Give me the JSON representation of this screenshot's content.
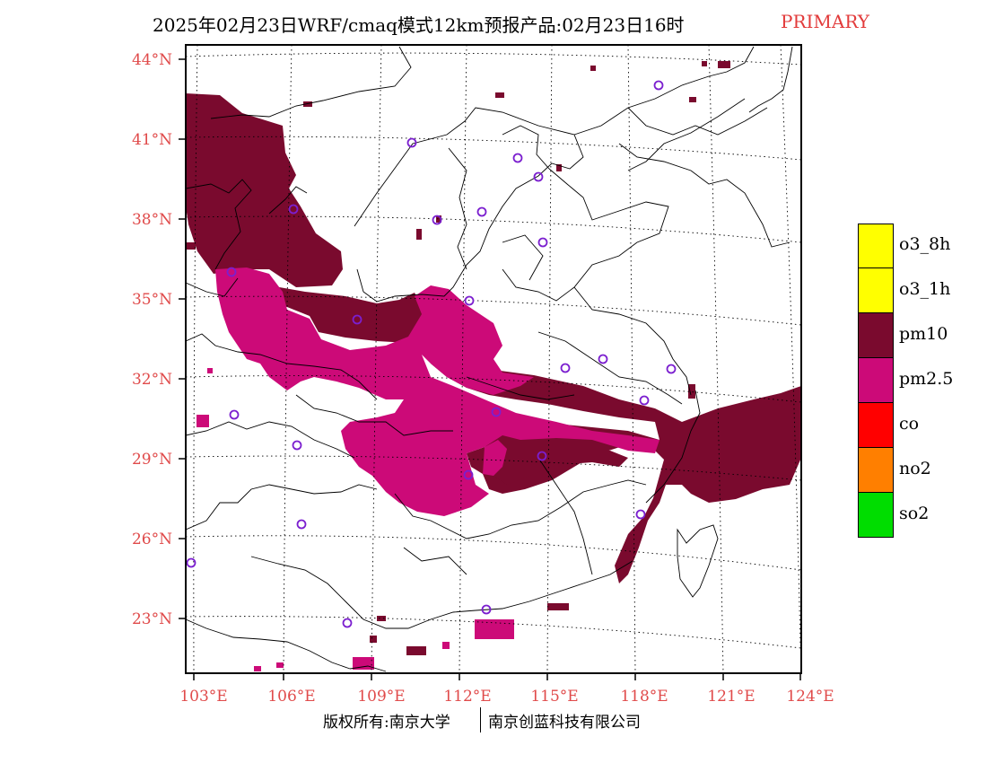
{
  "header": {
    "title": "2025年02月23日WRF/cmaq模式12km预报产品:02月23日16时",
    "tag": "PRIMARY",
    "tag_color": "#e23a3a"
  },
  "map": {
    "lat_labels": [
      "44°N",
      "41°N",
      "38°N",
      "35°N",
      "32°N",
      "29°N",
      "26°N",
      "23°N"
    ],
    "lon_labels": [
      "103°E",
      "106°E",
      "109°E",
      "112°E",
      "115°E",
      "118°E",
      "121°E",
      "124°E"
    ],
    "label_color": "#e04a4a",
    "station_markers": 25
  },
  "legend": {
    "items": [
      {
        "label": "o3_8h",
        "color": "#ffff00"
      },
      {
        "label": "o3_1h",
        "color": "#ffff00"
      },
      {
        "label": "pm10",
        "color": "#7a0a2e"
      },
      {
        "label": "pm2.5",
        "color": "#cc0a78"
      },
      {
        "label": "co",
        "color": "#ff0000"
      },
      {
        "label": "no2",
        "color": "#ff7f00"
      },
      {
        "label": "so2",
        "color": "#00dd00"
      }
    ]
  },
  "footer": {
    "copyright": "版权所有:南京大学",
    "company": "南京创蓝科技有限公司"
  }
}
